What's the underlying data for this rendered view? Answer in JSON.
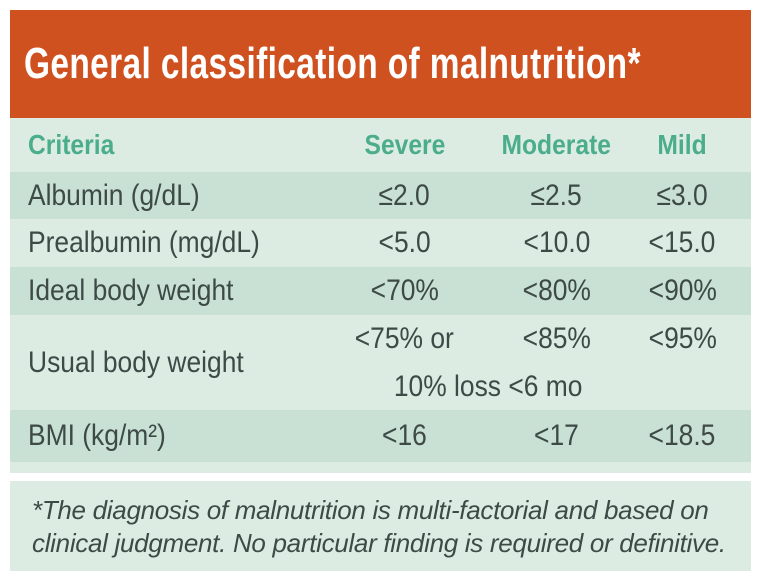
{
  "title": "General classification of malnutrition*",
  "colors": {
    "title_bar_bg": "#d05120",
    "title_text": "#ffffff",
    "table_bg_light": "#dcece3",
    "table_bg_dark": "#c8e1d4",
    "header_text": "#4bad8c",
    "body_text": "#3e4a46"
  },
  "table": {
    "columns": [
      "Criteria",
      "Severe",
      "Moderate",
      "Mild"
    ],
    "rows": [
      {
        "criteria": "Albumin (g/dL)",
        "severe": "≤2.0",
        "moderate": "≤2.5",
        "mild": "≤3.0"
      },
      {
        "criteria": "Prealbumin (mg/dL)",
        "severe": "<5.0",
        "moderate": "<10.0",
        "mild": "<15.0"
      },
      {
        "criteria": "Ideal body weight",
        "severe": "<70%",
        "moderate": "<80%",
        "mild": "<90%"
      },
      {
        "criteria": "Usual body weight",
        "severe": "<75% or",
        "severe_line2": "10% loss <6 mo",
        "moderate": "<85%",
        "mild": "<95%"
      },
      {
        "criteria": "BMI (kg/m²)",
        "severe": "<16",
        "moderate": "<17",
        "mild": "<18.5"
      }
    ]
  },
  "footnote": {
    "lines": [
      "*The diagnosis of malnutrition is multi-factorial and based on",
      "clinical judgment. No particular finding is required or definitive."
    ]
  }
}
